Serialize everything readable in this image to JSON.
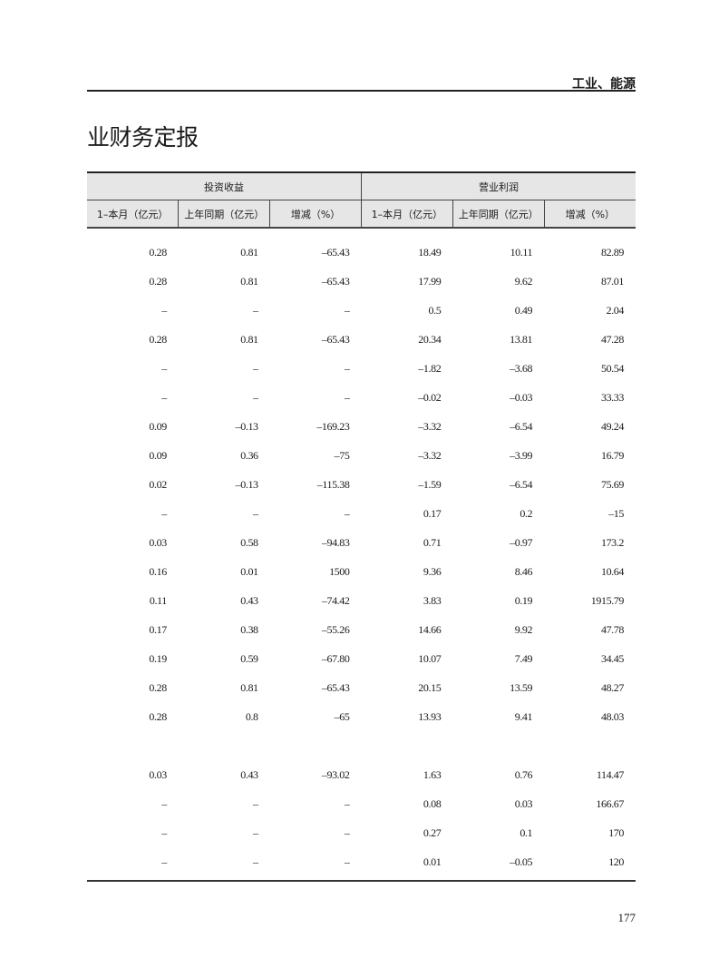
{
  "running_head": "工业、能源",
  "title": "业财务定报",
  "table": {
    "groups": [
      "投资收益",
      "营业利润"
    ],
    "columns": [
      "1–本月（亿元）",
      "上年同期（亿元）",
      "增减（%）",
      "1–本月（亿元）",
      "上年同期（亿元）",
      "增减（%）"
    ],
    "rows": [
      [
        "0.28",
        "0.81",
        "–65.43",
        "18.49",
        "10.11",
        "82.89"
      ],
      [
        "0.28",
        "0.81",
        "–65.43",
        "17.99",
        "9.62",
        "87.01"
      ],
      [
        "–",
        "–",
        "–",
        "0.5",
        "0.49",
        "2.04"
      ],
      [
        "0.28",
        "0.81",
        "–65.43",
        "20.34",
        "13.81",
        "47.28"
      ],
      [
        "–",
        "–",
        "–",
        "–1.82",
        "–3.68",
        "50.54"
      ],
      [
        "–",
        "–",
        "–",
        "–0.02",
        "–0.03",
        "33.33"
      ],
      [
        "0.09",
        "–0.13",
        "–169.23",
        "–3.32",
        "–6.54",
        "49.24"
      ],
      [
        "0.09",
        "0.36",
        "–75",
        "–3.32",
        "–3.99",
        "16.79"
      ],
      [
        "0.02",
        "–0.13",
        "–115.38",
        "–1.59",
        "–6.54",
        "75.69"
      ],
      [
        "–",
        "–",
        "–",
        "0.17",
        "0.2",
        "–15"
      ],
      [
        "0.03",
        "0.58",
        "–94.83",
        "0.71",
        "–0.97",
        "173.2"
      ],
      [
        "0.16",
        "0.01",
        "1500",
        "9.36",
        "8.46",
        "10.64"
      ],
      [
        "0.11",
        "0.43",
        "–74.42",
        "3.83",
        "0.19",
        "1915.79"
      ],
      [
        "0.17",
        "0.38",
        "–55.26",
        "14.66",
        "9.92",
        "47.78"
      ],
      [
        "0.19",
        "0.59",
        "–67.80",
        "10.07",
        "7.49",
        "34.45"
      ],
      [
        "0.28",
        "0.81",
        "–65.43",
        "20.15",
        "13.59",
        "48.27"
      ],
      [
        "0.28",
        "0.8",
        "–65",
        "13.93",
        "9.41",
        "48.03"
      ],
      [
        "",
        "",
        "",
        "",
        "",
        ""
      ],
      [
        "0.03",
        "0.43",
        "–93.02",
        "1.63",
        "0.76",
        "114.47"
      ],
      [
        "–",
        "–",
        "–",
        "0.08",
        "0.03",
        "166.67"
      ],
      [
        "–",
        "–",
        "–",
        "0.27",
        "0.1",
        "170"
      ],
      [
        "–",
        "–",
        "–",
        "0.01",
        "–0.05",
        "120"
      ]
    ]
  },
  "page_number": "177"
}
